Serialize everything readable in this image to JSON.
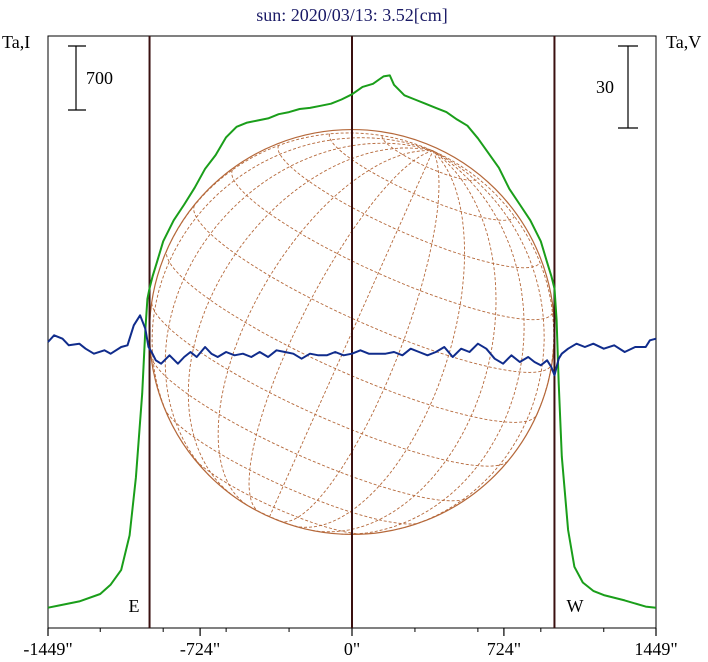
{
  "chart_data": {
    "type": "line",
    "title": "sun: 2020/03/13: 3.52[cm]",
    "ylabel_left": "Ta,I",
    "ylabel_right": "Ta,V",
    "scale_left_label": "700",
    "scale_right_label": "30",
    "xlim": [
      -1449,
      1449
    ],
    "x_ticks": [
      {
        "value": -1449,
        "label": "-1449\""
      },
      {
        "value": -724,
        "label": "-724\""
      },
      {
        "value": 0,
        "label": "0\""
      },
      {
        "value": 724,
        "label": "724\""
      },
      {
        "value": 1449,
        "label": "1449\""
      }
    ],
    "limb_markers": [
      {
        "value": -965,
        "label": "E"
      },
      {
        "value": 965,
        "label": "W"
      }
    ],
    "center_marker": 0,
    "solar_radius": 965,
    "i_axis": {
      "ylim": [
        0,
        4000
      ]
    },
    "v_axis": {
      "ylim": [
        -60,
        60
      ]
    },
    "series": [
      {
        "color": "#1a9e1a",
        "axis": "i_axis",
        "x": [
          -1449,
          -1400,
          -1300,
          -1200,
          -1150,
          -1100,
          -1060,
          -1030,
          -1000,
          -985,
          -975,
          -965,
          -950,
          -930,
          -900,
          -850,
          -800,
          -750,
          -700,
          -650,
          -600,
          -550,
          -500,
          -450,
          -400,
          -350,
          -300,
          -250,
          -200,
          -150,
          -100,
          -50,
          0,
          50,
          100,
          150,
          180,
          200,
          250,
          300,
          350,
          400,
          450,
          500,
          550,
          600,
          650,
          700,
          750,
          800,
          850,
          900,
          930,
          950,
          965,
          975,
          985,
          1000,
          1030,
          1060,
          1100,
          1150,
          1200,
          1300,
          1400,
          1449
        ],
        "values": [
          60,
          80,
          120,
          190,
          280,
          420,
          750,
          1300,
          2100,
          2700,
          3000,
          3100,
          3220,
          3350,
          3550,
          3750,
          3900,
          4060,
          4240,
          4370,
          4540,
          4640,
          4680,
          4700,
          4720,
          4760,
          4780,
          4810,
          4820,
          4840,
          4860,
          4900,
          4950,
          5020,
          5050,
          5120,
          5130,
          5040,
          4940,
          4900,
          4860,
          4820,
          4780,
          4710,
          4650,
          4530,
          4390,
          4250,
          4050,
          3900,
          3750,
          3550,
          3350,
          3220,
          3100,
          2800,
          2200,
          1500,
          800,
          450,
          300,
          220,
          180,
          130,
          70,
          60
        ]
      },
      {
        "color": "#102c8c",
        "axis": "v_axis",
        "x": [
          -1449,
          -1420,
          -1380,
          -1350,
          -1300,
          -1270,
          -1230,
          -1180,
          -1150,
          -1100,
          -1070,
          -1040,
          -1010,
          -985,
          -970,
          -955,
          -935,
          -910,
          -870,
          -830,
          -800,
          -770,
          -740,
          -700,
          -670,
          -640,
          -600,
          -560,
          -520,
          -480,
          -440,
          -400,
          -360,
          -320,
          -280,
          -240,
          -200,
          -160,
          -120,
          -80,
          -40,
          0,
          40,
          80,
          120,
          160,
          200,
          240,
          280,
          320,
          360,
          400,
          440,
          480,
          520,
          560,
          600,
          640,
          680,
          720,
          760,
          800,
          840,
          870,
          900,
          930,
          950,
          965,
          985,
          1000,
          1030,
          1070,
          1110,
          1150,
          1200,
          1250,
          1300,
          1350,
          1400,
          1420,
          1449
        ],
        "values": [
          0,
          4,
          2,
          -2,
          -1,
          -4,
          -7,
          -5,
          -7,
          -3,
          -2,
          10,
          16,
          8,
          -3,
          -6,
          -11,
          -13,
          -8,
          -13,
          -9,
          -6,
          -9,
          -3,
          -7,
          -9,
          -6,
          -8,
          -7,
          -9,
          -6,
          -9,
          -5,
          -6,
          -7,
          -10,
          -7,
          -8,
          -8,
          -6,
          -8,
          -7,
          -5,
          -7,
          -7,
          -7,
          -6,
          -8,
          -4,
          -6,
          -8,
          -6,
          -3,
          -9,
          -4,
          -6,
          -1,
          -4,
          -10,
          -13,
          -8,
          -12,
          -9,
          -12,
          -14,
          -11,
          -15,
          -20,
          -10,
          -7,
          -4,
          -1,
          -3,
          -1,
          -4,
          -2,
          -6,
          -3,
          -3,
          1,
          2
        ]
      }
    ]
  }
}
